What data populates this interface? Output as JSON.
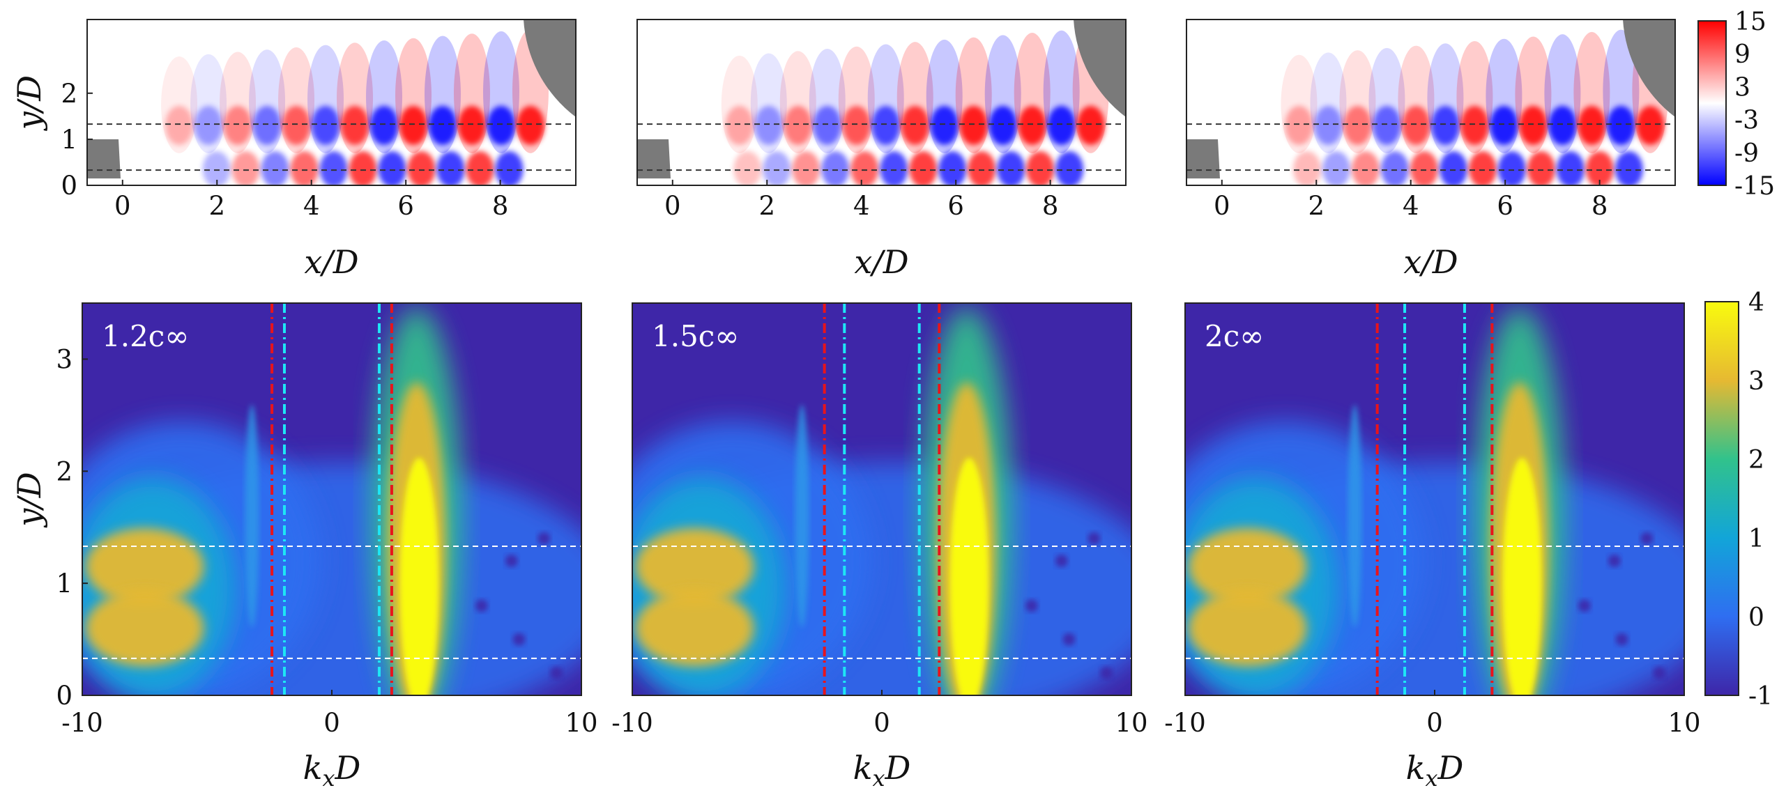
{
  "chart_data": {
    "type": "heatmap",
    "description_levels": [
      "1.2c∞",
      "1.5c∞",
      "2c∞"
    ],
    "top_panels": {
      "xlabel": "x/D",
      "ylabel": "y/D",
      "xlim": [
        -0.75,
        9.6
      ],
      "ylim": [
        0,
        3.6
      ],
      "xticks": [
        "0",
        "2",
        "4",
        "6",
        "8"
      ],
      "yticks": [
        "0",
        "1",
        "2"
      ],
      "dashed_lines_y": [
        0.33,
        1.33
      ],
      "colorbar": {
        "range": [
          -15,
          15
        ],
        "ticks": [
          "15",
          "9",
          "3",
          "-3",
          "-9",
          "-15"
        ],
        "colors": [
          "#0000ff",
          "#ffffff",
          "#ff0000"
        ]
      },
      "panels": [
        {
          "wave_phase": 0.0
        },
        {
          "wave_phase": 0.35
        },
        {
          "wave_phase": 0.7
        }
      ]
    },
    "bottom_panels": {
      "xlabel": "kxD",
      "ylabel": "y/D",
      "xlim": [
        -10,
        10
      ],
      "ylim": [
        0,
        3.5
      ],
      "xticks": [
        "-10",
        "0",
        "10"
      ],
      "yticks": [
        "0",
        "1",
        "2",
        "3"
      ],
      "dashed_lines_y": [
        0.33,
        1.33
      ],
      "colorbar": {
        "range": [
          -1,
          4
        ],
        "ticks": [
          "4",
          "3",
          "2",
          "1",
          "0",
          "-1"
        ],
        "colormap": "parula"
      },
      "panels": [
        {
          "label": "1.2c∞",
          "red_lines_kx": [
            -2.4,
            2.4
          ],
          "cyan_lines_kx": [
            -1.9,
            1.9
          ]
        },
        {
          "label": "1.5c∞",
          "red_lines_kx": [
            -2.3,
            2.3
          ],
          "cyan_lines_kx": [
            -1.5,
            1.5
          ]
        },
        {
          "label": "2c∞",
          "red_lines_kx": [
            -2.3,
            2.3
          ],
          "cyan_lines_kx": [
            -1.2,
            1.2
          ]
        }
      ]
    }
  },
  "labels": {
    "x_top": "x/D",
    "y_top": "y/D",
    "x_bottom": "k",
    "x_bottom_sub": "x",
    "x_bottom_tail": "D",
    "y_bottom": "y/D"
  }
}
